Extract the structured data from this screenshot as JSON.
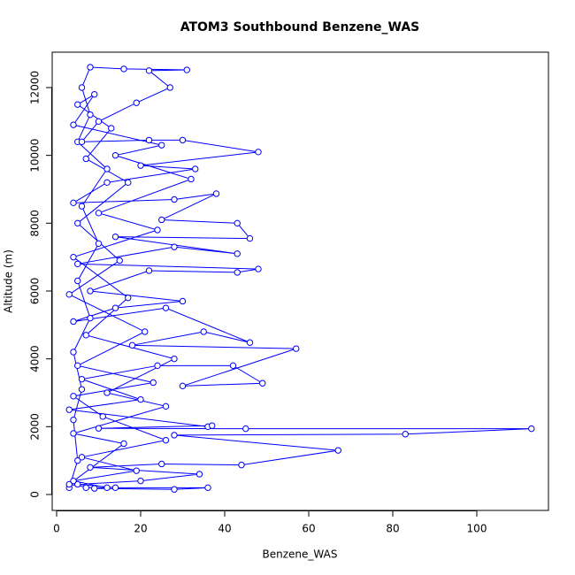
{
  "chart_data": {
    "type": "line",
    "title": "ATOM3 Southbound Benzene_WAS",
    "x_label": "Benzene_WAS",
    "y_label": "Altitude (m)",
    "color": "#0000ff",
    "markers": true,
    "x": [
      3,
      5,
      4,
      6,
      4,
      8,
      5,
      10,
      6,
      12,
      5,
      8,
      6,
      8,
      16,
      31,
      22,
      27,
      19,
      10,
      6,
      22,
      30,
      48,
      20,
      33,
      12,
      4,
      28,
      38,
      25,
      43,
      46,
      14,
      43,
      28,
      5,
      48,
      43,
      22,
      8,
      30,
      14,
      4,
      26,
      46,
      35,
      18,
      57,
      30,
      49,
      42,
      24,
      6,
      20,
      3,
      36,
      37,
      10,
      45,
      113,
      83,
      28,
      67,
      44,
      25,
      8,
      34,
      20,
      5,
      14,
      36,
      28,
      9,
      3,
      16,
      4,
      26,
      12,
      28,
      7,
      17,
      4,
      24,
      10,
      32,
      14,
      25,
      4,
      9,
      5,
      13,
      7,
      17,
      5,
      15,
      3,
      21,
      5,
      23,
      4,
      11,
      26,
      6,
      19,
      4,
      12,
      7
    ],
    "values": [
      200,
      1000,
      2200,
      3100,
      4200,
      5200,
      6300,
      7400,
      8500,
      9600,
      10400,
      11200,
      12000,
      12600,
      12550,
      12520,
      12500,
      12000,
      11550,
      11000,
      10400,
      10450,
      10450,
      10100,
      9700,
      9600,
      9200,
      8600,
      8700,
      8870,
      8100,
      8000,
      7550,
      7600,
      7100,
      7300,
      6800,
      6650,
      6550,
      6600,
      6000,
      5700,
      5500,
      5100,
      5500,
      4480,
      4800,
      4400,
      4300,
      3200,
      3280,
      3800,
      3800,
      3400,
      2800,
      2500,
      2000,
      2030,
      1950,
      1940,
      1940,
      1780,
      1750,
      1300,
      870,
      900,
      800,
      600,
      400,
      300,
      200,
      200,
      150,
      180,
      300,
      1500,
      1800,
      2600,
      3000,
      4000,
      4700,
      5800,
      7000,
      7800,
      8300,
      9300,
      10000,
      10300,
      10900,
      11800,
      11500,
      10800,
      9900,
      9200,
      8000,
      6900,
      5900,
      4800,
      3800,
      3300,
      2900,
      2300,
      1600,
      1100,
      700,
      400,
      200,
      200
    ],
    "xlim": [
      -1.05,
      117.05
    ],
    "ylim": [
      -470,
      13043
    ],
    "xticks": [
      0,
      20,
      40,
      60,
      80,
      100
    ],
    "yticks": [
      0,
      2000,
      4000,
      6000,
      8000,
      10000,
      12000
    ]
  }
}
